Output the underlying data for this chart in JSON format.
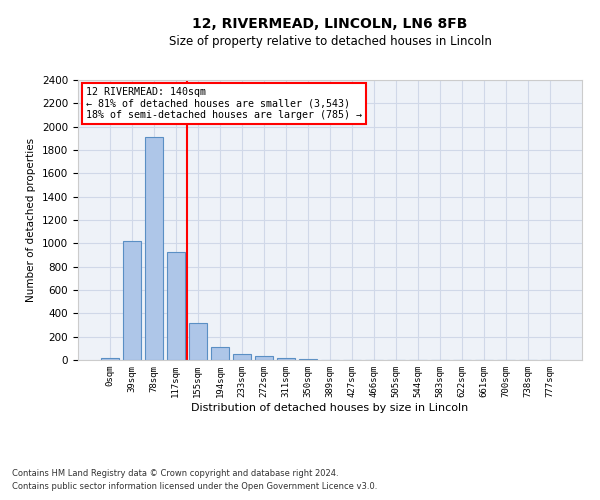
{
  "title_line1": "12, RIVERMEAD, LINCOLN, LN6 8FB",
  "title_line2": "Size of property relative to detached houses in Lincoln",
  "xlabel": "Distribution of detached houses by size in Lincoln",
  "ylabel": "Number of detached properties",
  "categories": [
    "0sqm",
    "39sqm",
    "78sqm",
    "117sqm",
    "155sqm",
    "194sqm",
    "233sqm",
    "272sqm",
    "311sqm",
    "350sqm",
    "389sqm",
    "427sqm",
    "466sqm",
    "505sqm",
    "544sqm",
    "583sqm",
    "622sqm",
    "661sqm",
    "700sqm",
    "738sqm",
    "777sqm"
  ],
  "values": [
    20,
    1020,
    1910,
    925,
    315,
    110,
    55,
    35,
    20,
    5,
    0,
    0,
    0,
    0,
    0,
    0,
    0,
    0,
    0,
    0,
    0
  ],
  "bar_color": "#aec6e8",
  "bar_edge_color": "#5a8fc4",
  "vline_x": 3.5,
  "vline_color": "red",
  "annotation_text": "12 RIVERMEAD: 140sqm\n← 81% of detached houses are smaller (3,543)\n18% of semi-detached houses are larger (785) →",
  "annotation_box_color": "white",
  "annotation_box_edge_color": "red",
  "ylim": [
    0,
    2400
  ],
  "yticks": [
    0,
    200,
    400,
    600,
    800,
    1000,
    1200,
    1400,
    1600,
    1800,
    2000,
    2200,
    2400
  ],
  "footer_line1": "Contains HM Land Registry data © Crown copyright and database right 2024.",
  "footer_line2": "Contains public sector information licensed under the Open Government Licence v3.0.",
  "grid_color": "#d0d8e8",
  "background_color": "#eef2f8"
}
